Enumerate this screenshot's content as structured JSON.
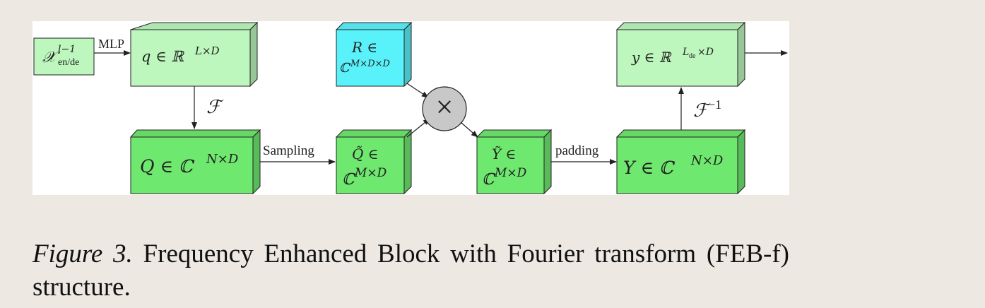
{
  "diagram": {
    "nodes": {
      "x_input": {
        "main": "𝒳",
        "sup": "l−1",
        "sub": "en/de"
      },
      "q": {
        "text": "q ∈ ℝ",
        "sup": "L×D"
      },
      "R": {
        "line1": "R ∈",
        "line2": "ℂ",
        "sup": "M×D×D"
      },
      "y": {
        "text": "y ∈ ℝ",
        "sup": "L",
        "sup_sub": "de",
        "sup_tail": "×D"
      },
      "Q": {
        "text": "Q ∈ ℂ",
        "sup": "N×D"
      },
      "Q_tilde": {
        "line1": "Q̃ ∈",
        "line2": "ℂ",
        "sup": "M×D"
      },
      "Y_tilde": {
        "line1": "Ỹ ∈",
        "line2": "ℂ",
        "sup": "M×D"
      },
      "Y": {
        "text": "Y ∈ ℂ",
        "sup": "N×D"
      },
      "multiply": {
        "symbol": "×"
      }
    },
    "edges": {
      "mlp": "MLP",
      "fourier": "ℱ",
      "sampling": "Sampling",
      "padding": "padding",
      "inverse_fourier": "ℱ",
      "inverse_sup": "−1"
    },
    "colors": {
      "light_green": "#bdf7bd",
      "green": "#6ee86e",
      "cyan": "#5af2fa",
      "multiply_fill": "#c8c8c8",
      "stroke": "#222222"
    }
  },
  "caption": {
    "label": "Figure 3.",
    "text": "Frequency Enhanced Block with Fourier transform (FEB-f) structure."
  }
}
